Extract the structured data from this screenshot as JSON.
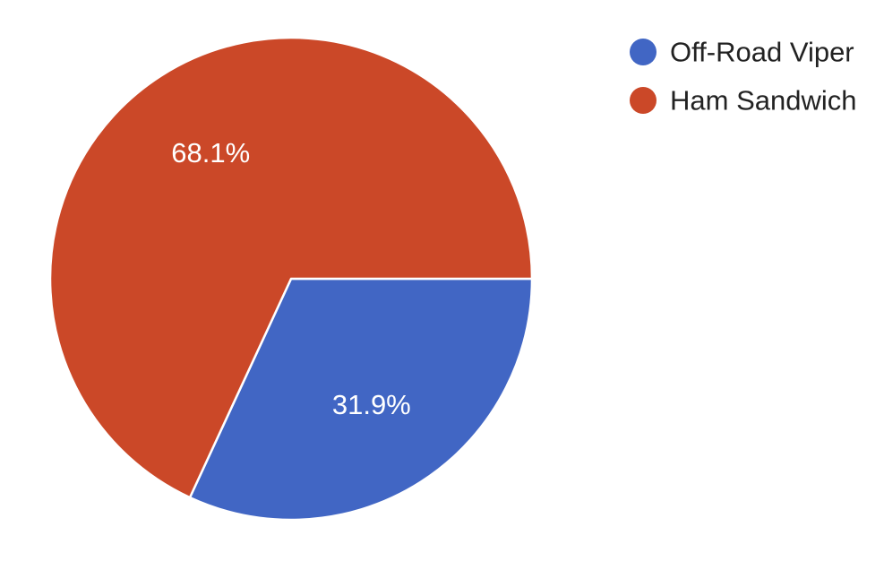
{
  "chart_data": {
    "type": "pie",
    "categories": [
      "Off-Road Viper",
      "Ham Sandwich"
    ],
    "values": [
      31.9,
      68.1
    ],
    "data_labels": [
      "31.9%",
      "68.1%"
    ],
    "colors": [
      "#4166c4",
      "#cb4828"
    ],
    "legend": {
      "placement": "top-right",
      "entries": [
        "Off-Road Viper",
        "Ham Sandwich"
      ]
    },
    "start_angle": "3 o'clock",
    "direction": "clockwise"
  }
}
